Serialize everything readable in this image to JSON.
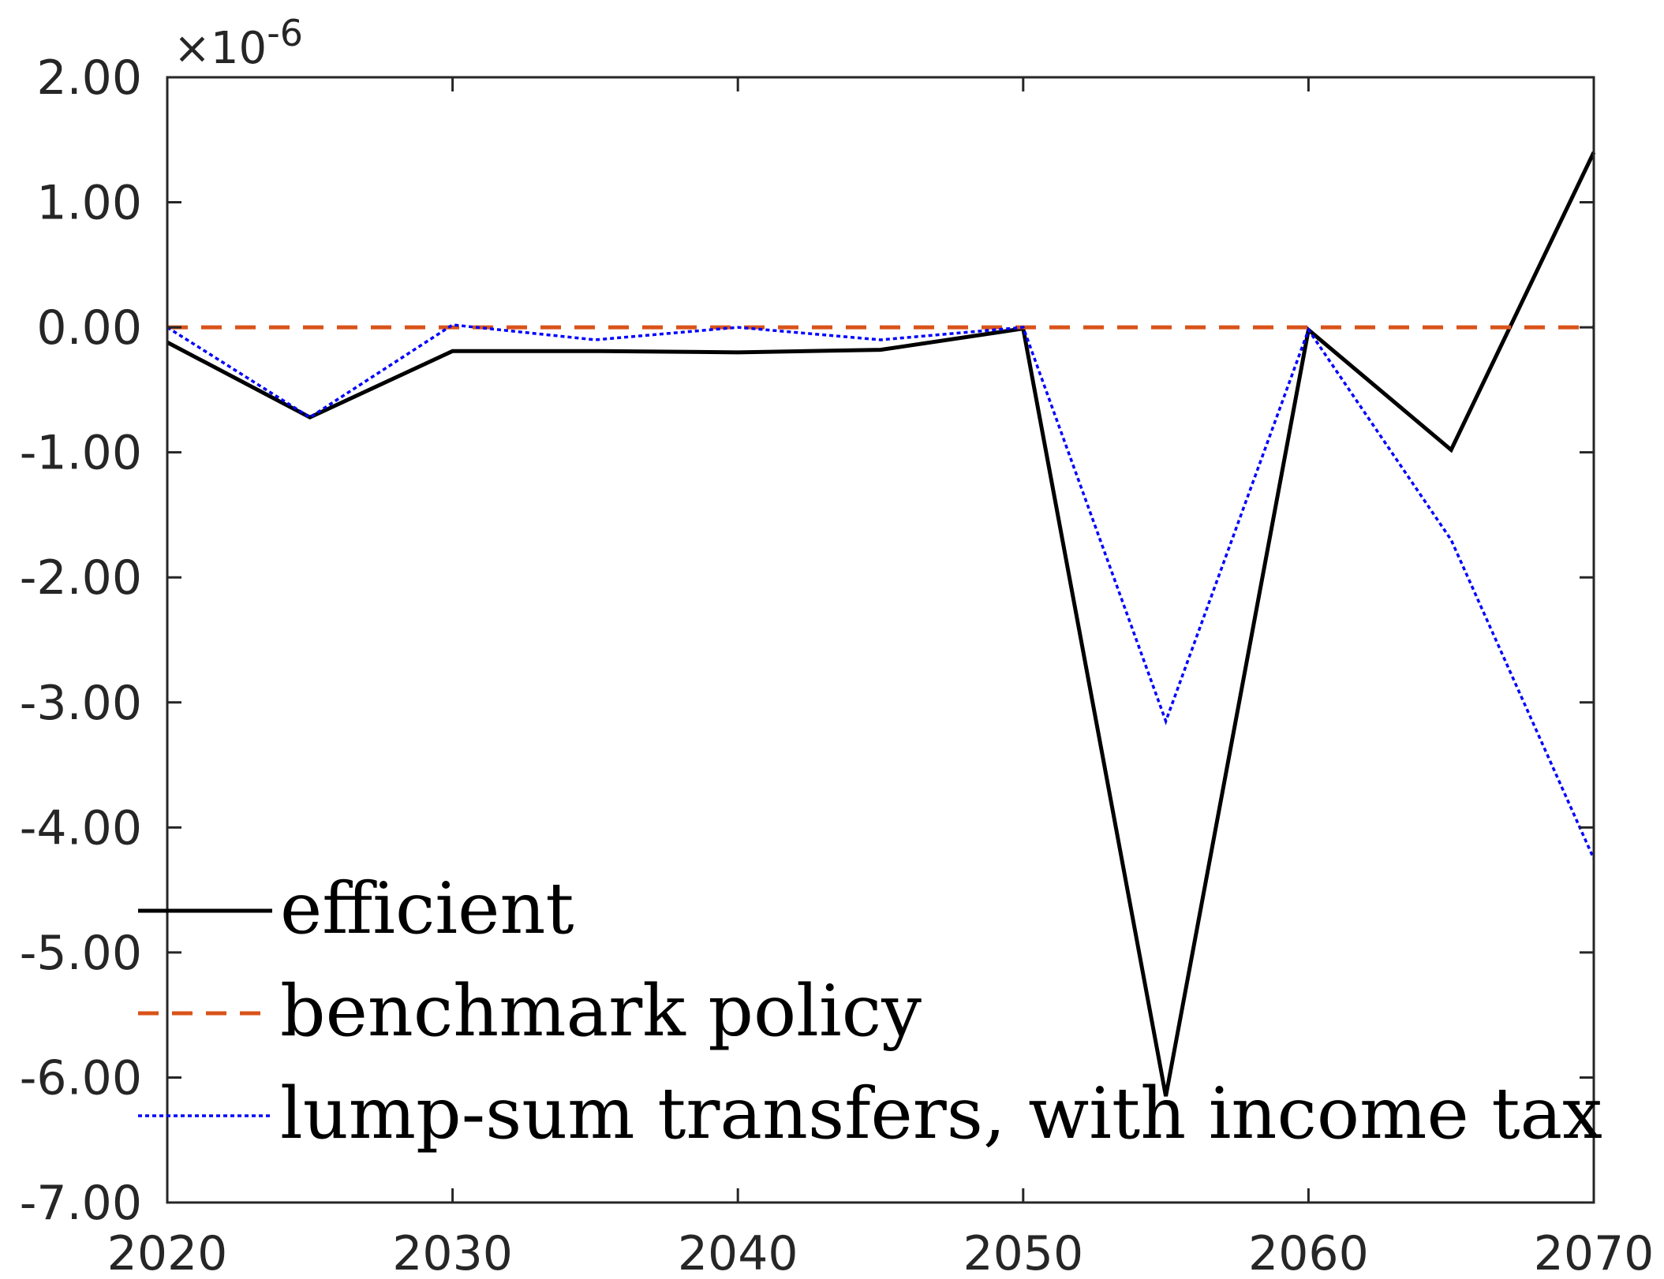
{
  "chart_data": {
    "type": "line",
    "title": "",
    "xlabel": "",
    "ylabel": "",
    "y_exponent_label": {
      "base": "×10",
      "exponent": "-6"
    },
    "xlim": [
      2020,
      2070
    ],
    "ylim": [
      -7,
      2
    ],
    "x_ticks": [
      2020,
      2030,
      2040,
      2050,
      2060,
      2070
    ],
    "x_tick_labels": [
      "2020",
      "2030",
      "2040",
      "2050",
      "2060",
      "2070"
    ],
    "y_ticks": [
      2,
      1,
      0,
      -1,
      -2,
      -3,
      -4,
      -5,
      -6,
      -7
    ],
    "y_tick_labels": [
      "2.00",
      "1.00",
      "0.00",
      "-1.00",
      "-2.00",
      "-3.00",
      "-4.00",
      "-5.00",
      "-6.00",
      "-7.00"
    ],
    "grid": false,
    "legend_position": "bottom-left",
    "series": [
      {
        "name": "efficient",
        "color": "#000000",
        "style": "solid",
        "x": [
          2020,
          2025,
          2030,
          2035,
          2040,
          2045,
          2050,
          2055,
          2060,
          2065,
          2070
        ],
        "y": [
          -0.12,
          -0.72,
          -0.19,
          -0.19,
          -0.2,
          -0.18,
          -0.01,
          -6.15,
          -0.02,
          -0.98,
          1.4
        ]
      },
      {
        "name": "benchmark policy",
        "color": "#d95319",
        "style": "dashed",
        "x": [
          2020,
          2025,
          2030,
          2035,
          2040,
          2045,
          2050,
          2055,
          2060,
          2065,
          2070
        ],
        "y": [
          0,
          0,
          0,
          0,
          0,
          0,
          0,
          0,
          0,
          0,
          0
        ]
      },
      {
        "name": "lump-sum transfers, with income tax",
        "color": "#0000ff",
        "style": "dotted",
        "x": [
          2020,
          2025,
          2030,
          2035,
          2040,
          2045,
          2050,
          2055,
          2060,
          2065,
          2070
        ],
        "y": [
          0,
          -0.72,
          0.02,
          -0.1,
          0.0,
          -0.1,
          0.0,
          -3.15,
          -0.02,
          -1.7,
          -4.25
        ]
      }
    ]
  }
}
